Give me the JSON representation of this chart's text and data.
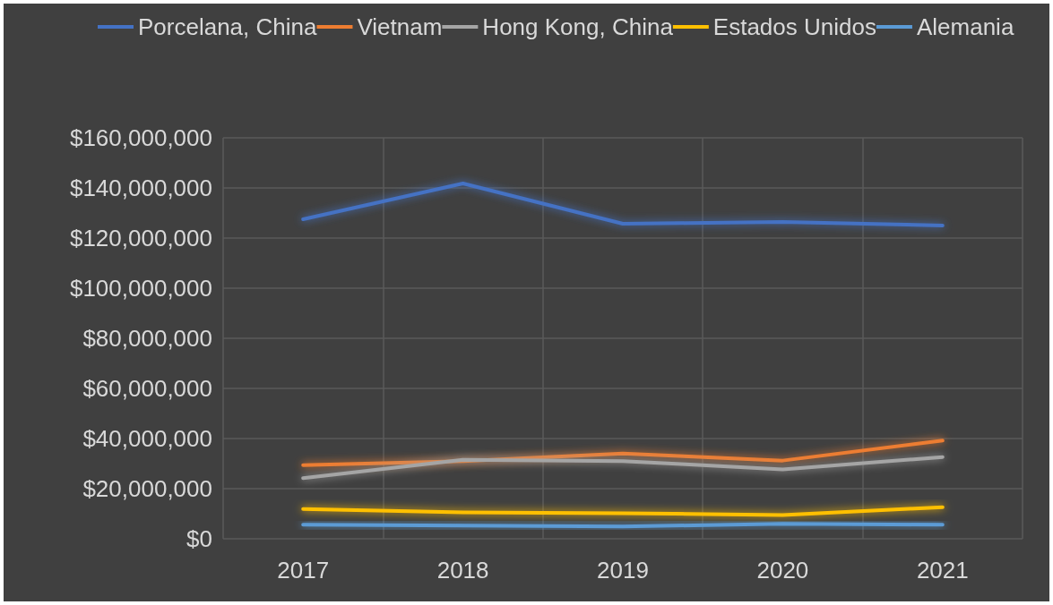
{
  "chart_data": {
    "type": "line",
    "categories": [
      "2017",
      "2018",
      "2019",
      "2020",
      "2021"
    ],
    "series": [
      {
        "name": "Porcelana, China",
        "color": "#4472c4",
        "values": [
          127500000,
          141800000,
          125700000,
          126400000,
          125000000
        ]
      },
      {
        "name": "Vietnam",
        "color": "#ed7d31",
        "values": [
          29400000,
          31000000,
          34000000,
          31200000,
          39200000
        ]
      },
      {
        "name": "Hong Kong, China",
        "color": "#a5a5a5",
        "values": [
          24200000,
          31500000,
          31000000,
          27700000,
          32600000
        ]
      },
      {
        "name": "Estados Unidos",
        "color": "#ffc000",
        "values": [
          11900000,
          10500000,
          10200000,
          9500000,
          12600000
        ]
      },
      {
        "name": "Alemania",
        "color": "#5b9bd5",
        "values": [
          5600000,
          5300000,
          4900000,
          6000000,
          5600000
        ]
      }
    ],
    "ylim": [
      0,
      160000000
    ],
    "yticks": [
      {
        "value": 0,
        "label": "$0"
      },
      {
        "value": 20000000,
        "label": "$20,000,000"
      },
      {
        "value": 40000000,
        "label": "$40,000,000"
      },
      {
        "value": 60000000,
        "label": "$60,000,000"
      },
      {
        "value": 80000000,
        "label": "$80,000,000"
      },
      {
        "value": 100000000,
        "label": "$100,000,000"
      },
      {
        "value": 120000000,
        "label": "$120,000,000"
      },
      {
        "value": 140000000,
        "label": "$140,000,000"
      },
      {
        "value": 160000000,
        "label": "$160,000,000"
      }
    ],
    "grid": true,
    "legend": "top",
    "marker": "none",
    "line_style": "solid"
  }
}
